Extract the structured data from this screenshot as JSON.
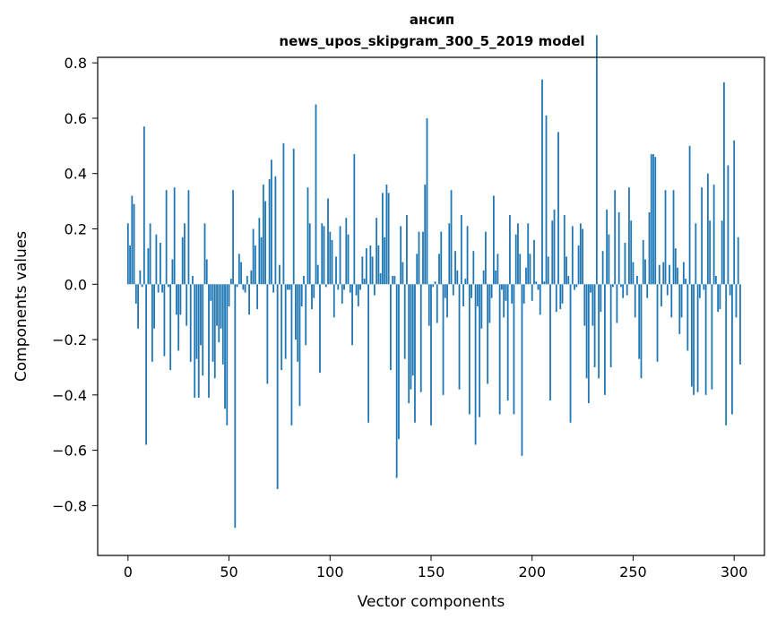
{
  "chart_data": {
    "type": "bar",
    "title_line1": "ансип",
    "title_line2": "news_upos_skipgram_300_5_2019 model",
    "xlabel": "Vector components",
    "ylabel": "Components values",
    "xlim": [
      -15,
      315
    ],
    "ylim": [
      -0.98,
      0.82
    ],
    "x_ticks": [
      0,
      50,
      100,
      150,
      200,
      250,
      300
    ],
    "x_tick_labels": [
      "0",
      "50",
      "100",
      "150",
      "200",
      "250",
      "300"
    ],
    "y_ticks": [
      -0.8,
      -0.6,
      -0.4,
      -0.2,
      0.0,
      0.2,
      0.4,
      0.6,
      0.8
    ],
    "y_tick_labels": [
      "−0.8",
      "−0.6",
      "−0.4",
      "−0.2",
      "0.0",
      "0.2",
      "0.4",
      "0.6",
      "0.8"
    ],
    "bar_color": "#1f77b4",
    "grid": false,
    "values": [
      0.22,
      0.14,
      0.32,
      0.29,
      -0.07,
      -0.16,
      0.05,
      -0.01,
      0.57,
      -0.58,
      0.13,
      0.22,
      -0.28,
      -0.16,
      0.18,
      -0.03,
      0.15,
      -0.03,
      -0.26,
      0.34,
      -0.01,
      -0.31,
      0.09,
      0.35,
      -0.11,
      -0.24,
      -0.11,
      0.17,
      0.22,
      -0.15,
      0.34,
      -0.28,
      0.03,
      -0.41,
      -0.27,
      -0.41,
      -0.22,
      -0.33,
      0.22,
      0.09,
      -0.41,
      -0.06,
      -0.28,
      -0.34,
      -0.15,
      -0.21,
      -0.16,
      -0.29,
      -0.45,
      -0.51,
      -0.08,
      0.02,
      0.34,
      -0.88,
      -0.01,
      0.11,
      0.08,
      -0.02,
      -0.03,
      0.03,
      -0.11,
      0.05,
      0.2,
      0.14,
      -0.09,
      0.24,
      0.17,
      0.36,
      0.3,
      -0.36,
      0.38,
      0.45,
      -0.03,
      0.39,
      -0.74,
      0.07,
      -0.31,
      0.51,
      -0.27,
      -0.02,
      -0.02,
      -0.51,
      0.49,
      -0.2,
      -0.28,
      -0.44,
      -0.08,
      0.03,
      -0.22,
      0.35,
      0.22,
      -0.09,
      -0.05,
      0.65,
      0.07,
      -0.32,
      0.22,
      0.21,
      -0.01,
      0.31,
      0.19,
      0.16,
      -0.12,
      0.1,
      -0.02,
      0.21,
      -0.07,
      -0.02,
      0.24,
      0.18,
      -0.03,
      -0.22,
      0.47,
      -0.04,
      -0.08,
      -0.02,
      0.1,
      0.02,
      0.13,
      -0.5,
      0.14,
      0.1,
      -0.04,
      0.24,
      0.14,
      0.04,
      0.33,
      0.17,
      0.36,
      0.33,
      -0.31,
      0.03,
      0.03,
      -0.7,
      -0.56,
      0.21,
      0.08,
      -0.27,
      0.25,
      -0.43,
      -0.38,
      -0.33,
      -0.5,
      0.11,
      0.19,
      -0.39,
      0.19,
      0.36,
      0.6,
      -0.15,
      -0.51,
      -0.01,
      0.01,
      -0.14,
      0.11,
      0.19,
      -0.4,
      -0.05,
      -0.12,
      0.22,
      0.34,
      -0.04,
      0.12,
      0.05,
      -0.38,
      0.25,
      -0.08,
      0.02,
      0.21,
      -0.47,
      -0.05,
      0.12,
      -0.58,
      -0.08,
      -0.48,
      -0.16,
      0.05,
      0.19,
      -0.36,
      -0.14,
      -0.05,
      0.32,
      0.05,
      0.11,
      -0.47,
      -0.02,
      -0.12,
      -0.06,
      -0.42,
      0.25,
      -0.07,
      -0.47,
      0.18,
      0.22,
      0.11,
      -0.62,
      -0.07,
      0.06,
      0.22,
      0.11,
      -0.06,
      0.16,
      0.01,
      -0.02,
      -0.11,
      0.74,
      0.01,
      0.61,
      0.1,
      -0.42,
      0.23,
      0.27,
      -0.1,
      0.55,
      -0.09,
      -0.07,
      0.25,
      0.1,
      0.03,
      -0.5,
      0.21,
      -0.02,
      -0.01,
      0.14,
      0.22,
      0.2,
      -0.15,
      -0.34,
      -0.43,
      -0.03,
      -0.15,
      -0.3,
      0.9,
      -0.34,
      -0.1,
      0.12,
      -0.4,
      0.27,
      0.18,
      -0.3,
      -0.01,
      0.34,
      -0.14,
      0.26,
      -0.01,
      -0.05,
      0.15,
      -0.04,
      0.35,
      0.23,
      0.08,
      -0.12,
      0.03,
      -0.27,
      -0.34,
      0.16,
      0.09,
      -0.05,
      0.26,
      0.47,
      0.47,
      0.46,
      -0.28,
      0.07,
      -0.08,
      0.08,
      0.34,
      -0.04,
      0.07,
      -0.12,
      0.34,
      0.13,
      0.06,
      -0.18,
      -0.12,
      0.08,
      0.02,
      -0.24,
      0.5,
      -0.37,
      -0.4,
      0.22,
      -0.39,
      -0.05,
      0.35,
      -0.02,
      -0.4,
      0.4,
      0.23,
      -0.38,
      0.36,
      0.03,
      -0.1,
      -0.09,
      0.23,
      0.73,
      -0.51,
      0.43,
      -0.04,
      -0.47,
      0.52,
      -0.12,
      0.17,
      -0.29
    ]
  }
}
